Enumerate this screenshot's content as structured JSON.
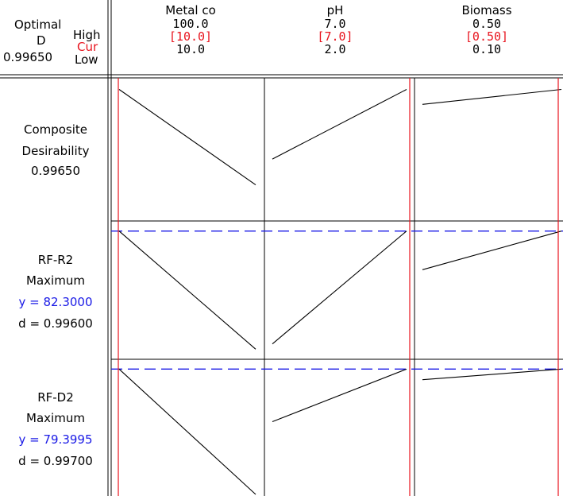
{
  "optimal": {
    "label_line1": "Optimal",
    "label_line2": "D",
    "value": "0.99650",
    "high_label": "High",
    "cur_label": "Cur",
    "low_label": "Low"
  },
  "factors": [
    {
      "name": "Metal co",
      "high": "100.0",
      "cur": "[10.0]",
      "low": "10.0",
      "cur_value": 10.0,
      "min": 10.0,
      "max": 100.0
    },
    {
      "name": "pH",
      "high": "7.0",
      "cur": "[7.0]",
      "low": "2.0",
      "cur_value": 7.0,
      "min": 2.0,
      "max": 7.0
    },
    {
      "name": "Biomass",
      "high": "0.50",
      "cur": "[0.50]",
      "low": "0.10",
      "cur_value": 0.5,
      "min": 0.1,
      "max": 0.5
    }
  ],
  "responses": [
    {
      "line1": "Composite",
      "line2": "Desirability",
      "line3": "0.99650",
      "line4": ""
    },
    {
      "line1": "RF-R2",
      "line2": "Maximum",
      "line3": "y = 82.3000",
      "line4": "d = 0.99600"
    },
    {
      "line1": "RF-D2",
      "line2": "Maximum",
      "line3": "y = 79.3995",
      "line4": "d = 0.99700"
    }
  ],
  "colors": {
    "current_line": "#e8141e",
    "optimum_line": "#1a1ae6",
    "trace": "#000000",
    "grid": "#000000"
  },
  "chart_data": {
    "type": "line",
    "title": "",
    "x_factors": [
      "Metal co",
      "pH",
      "Biomass"
    ],
    "panels": [
      {
        "row": "Composite Desirability",
        "traces": [
          {
            "factor": "Metal co",
            "x": [
              10.0,
              100.0
            ],
            "y": [
              0.9965,
              0.7
            ]
          },
          {
            "factor": "pH",
            "x": [
              2.0,
              7.0
            ],
            "y": [
              0.78,
              0.9965
            ]
          },
          {
            "factor": "Biomass",
            "x": [
              0.1,
              0.5
            ],
            "y": [
              0.95,
              0.9965
            ]
          }
        ],
        "ylim": [
          0.6,
          1.02
        ],
        "optimum_y": null
      },
      {
        "row": "RF-R2",
        "traces": [
          {
            "factor": "Metal co",
            "x": [
              10.0,
              100.0
            ],
            "y": [
              82.3,
              60.0
            ]
          },
          {
            "factor": "pH",
            "x": [
              2.0,
              7.0
            ],
            "y": [
              61.0,
              82.3
            ]
          },
          {
            "factor": "Biomass",
            "x": [
              0.1,
              0.5
            ],
            "y": [
              75.0,
              82.3
            ]
          }
        ],
        "ylim": [
          59.0,
          83.3
        ],
        "optimum_y": 82.3
      },
      {
        "row": "RF-D2",
        "traces": [
          {
            "factor": "Metal co",
            "x": [
              10.0,
              100.0
            ],
            "y": [
              79.3995,
              57.0
            ]
          },
          {
            "factor": "pH",
            "x": [
              2.0,
              7.0
            ],
            "y": [
              70.0,
              79.3995
            ]
          },
          {
            "factor": "Biomass",
            "x": [
              0.1,
              0.5
            ],
            "y": [
              77.5,
              79.3995
            ]
          }
        ],
        "ylim": [
          57.0,
          80.3
        ],
        "optimum_y": 79.3995
      }
    ]
  }
}
